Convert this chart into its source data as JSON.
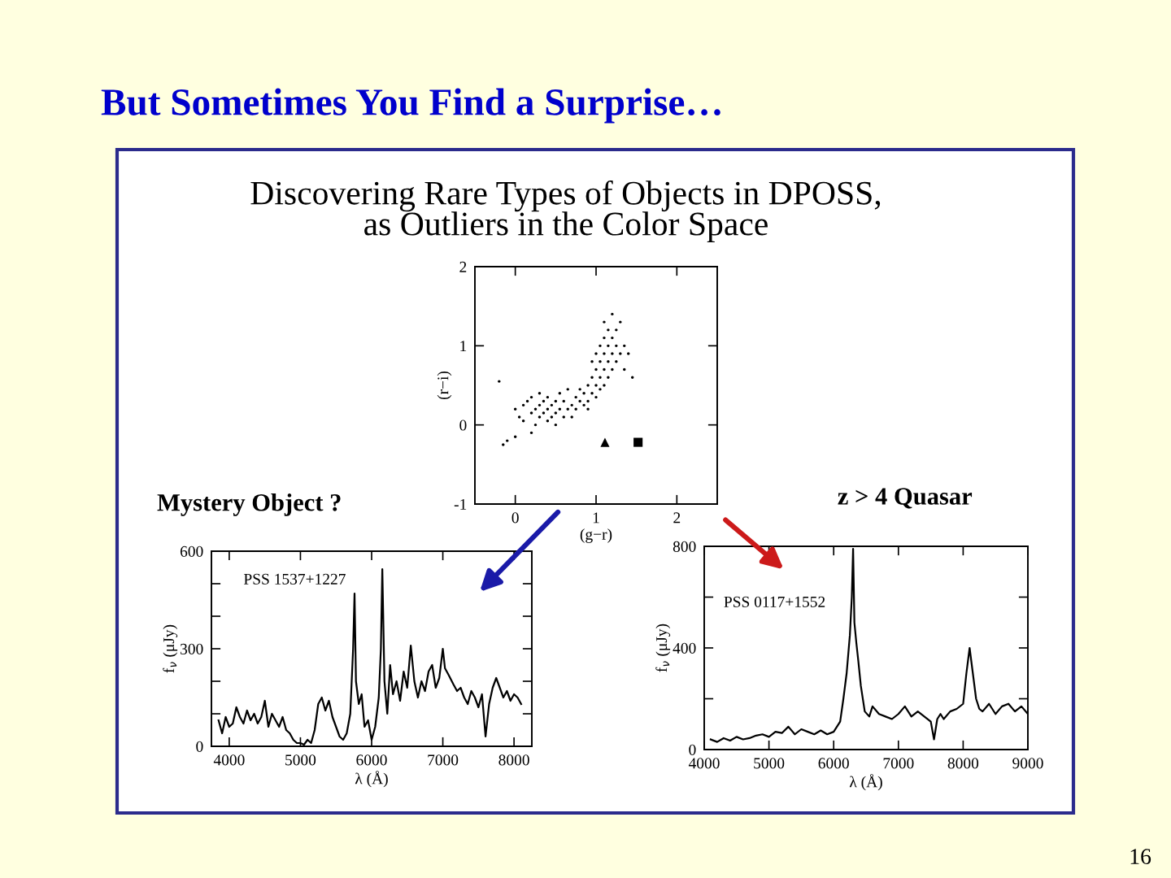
{
  "chart_data": [
    {
      "type": "scatter",
      "title": "Discovering Rare Types of Objects in DPOSS,\nas Outliers in the Color Space",
      "xlabel": "(g−r)",
      "ylabel": "(r−i)",
      "xlim": [
        -0.5,
        2.5
      ],
      "ylim": [
        -1,
        2
      ],
      "xticks": [
        0,
        1,
        2
      ],
      "yticks": [
        -1,
        0,
        1,
        2
      ],
      "grid": false,
      "legend": false,
      "annotations": [
        "But Sometimes You Find a Surprise…",
        "16"
      ],
      "series": [
        {
          "color": "#000000",
          "marker": "circle",
          "x": [
            0.0,
            0.05,
            0.1,
            0.1,
            0.15,
            0.2,
            0.2,
            0.25,
            0.25,
            0.3,
            0.3,
            0.3,
            0.35,
            0.35,
            0.4,
            0.4,
            0.4,
            0.45,
            0.45,
            0.5,
            0.5,
            0.5,
            0.55,
            0.55,
            0.6,
            0.6,
            0.65,
            0.65,
            0.7,
            0.7,
            0.75,
            0.75,
            0.8,
            0.8,
            0.85,
            0.85,
            0.9,
            0.9,
            0.9,
            0.95,
            0.95,
            0.95,
            1.0,
            1.0,
            1.0,
            1.0,
            1.05,
            1.05,
            1.05,
            1.05,
            1.1,
            1.1,
            1.1,
            1.1,
            1.1,
            1.15,
            1.15,
            1.15,
            1.15,
            1.2,
            1.2,
            1.2,
            1.2,
            1.25,
            1.25,
            1.25,
            1.3,
            1.3,
            1.35,
            1.35,
            1.4,
            0.2,
            0.0,
            -0.1,
            -0.15,
            -0.2,
            1.45
          ],
          "values": [
            0.2,
            0.1,
            0.25,
            0.05,
            0.3,
            0.15,
            0.35,
            0.2,
            0.0,
            0.1,
            0.25,
            0.4,
            0.15,
            0.3,
            0.05,
            0.2,
            0.35,
            0.1,
            0.25,
            0.15,
            0.3,
            0.0,
            0.2,
            0.4,
            0.1,
            0.3,
            0.2,
            0.45,
            0.25,
            0.1,
            0.35,
            0.2,
            0.3,
            0.45,
            0.25,
            0.4,
            0.3,
            0.5,
            0.2,
            0.6,
            0.4,
            0.8,
            0.5,
            0.7,
            0.35,
            0.9,
            0.6,
            0.8,
            1.0,
            0.45,
            0.5,
            0.7,
            0.9,
            1.1,
            1.3,
            0.6,
            0.8,
            1.0,
            1.2,
            0.7,
            0.9,
            1.1,
            1.4,
            0.8,
            1.0,
            1.2,
            0.9,
            1.3,
            0.7,
            1.0,
            0.9,
            -0.1,
            -0.15,
            -0.2,
            -0.25,
            0.55,
            0.6
          ]
        },
        {
          "color": "#000000",
          "marker": "triangle",
          "x": [
            1.11
          ],
          "values": [
            -0.22
          ]
        },
        {
          "color": "#000000",
          "marker": "square",
          "x": [
            1.52
          ],
          "values": [
            -0.22
          ]
        }
      ]
    },
    {
      "type": "line",
      "title": "Mystery Object ?",
      "xlabel": "λ (Å)",
      "ylabel": "f$_{ν}$ (μJy)",
      "xlim": [
        3750,
        8250
      ],
      "ylim": [
        0,
        600
      ],
      "xticks": [
        4000,
        5000,
        6000,
        7000,
        8000
      ],
      "yticks": [
        0,
        {
          "value": 100,
          "label": null
        },
        {
          "value": 200,
          "label": null
        },
        300,
        {
          "value": 400,
          "label": null
        },
        {
          "value": 500,
          "label": null
        },
        600
      ],
      "grid": false,
      "legend": false,
      "annotations": [
        "PSS 1537+1227"
      ],
      "series": [
        {
          "color": "#000000",
          "x": [
            3850,
            3900,
            3950,
            4000,
            4050,
            4100,
            4150,
            4200,
            4250,
            4300,
            4350,
            4400,
            4450,
            4500,
            4550,
            4600,
            4650,
            4700,
            4750,
            4800,
            4850,
            4900,
            4950,
            5000,
            5050,
            5100,
            5150,
            5200,
            5250,
            5300,
            5350,
            5400,
            5450,
            5500,
            5550,
            5600,
            5650,
            5700,
            5740,
            5760,
            5780,
            5820,
            5860,
            5900,
            5950,
            6000,
            6050,
            6100,
            6130,
            6150,
            6180,
            6220,
            6260,
            6300,
            6350,
            6400,
            6450,
            6500,
            6550,
            6600,
            6650,
            6700,
            6750,
            6800,
            6850,
            6900,
            6950,
            7000,
            7030,
            7080,
            7150,
            7200,
            7250,
            7300,
            7350,
            7400,
            7450,
            7500,
            7550,
            7600,
            7650,
            7700,
            7750,
            7800,
            7850,
            7900,
            7950,
            8000,
            8050,
            8100
          ],
          "values": [
            80,
            40,
            90,
            60,
            70,
            120,
            90,
            70,
            110,
            80,
            100,
            70,
            90,
            140,
            60,
            100,
            80,
            60,
            90,
            50,
            40,
            20,
            10,
            10,
            5,
            20,
            10,
            50,
            130,
            150,
            110,
            140,
            90,
            60,
            30,
            20,
            40,
            100,
            300,
            470,
            200,
            130,
            160,
            60,
            80,
            20,
            60,
            150,
            300,
            545,
            200,
            100,
            250,
            160,
            200,
            140,
            230,
            180,
            310,
            200,
            150,
            200,
            170,
            230,
            250,
            180,
            210,
            300,
            240,
            220,
            190,
            170,
            180,
            150,
            130,
            170,
            150,
            120,
            160,
            30,
            130,
            180,
            210,
            180,
            150,
            170,
            140,
            160,
            150,
            130
          ]
        }
      ]
    },
    {
      "type": "line",
      "title": "z > 4 Quasar",
      "xlabel": "λ (Å)",
      "ylabel": "f$_{ν}$ (μJy)",
      "xlim": [
        4000,
        9000
      ],
      "ylim": [
        0,
        800
      ],
      "xticks": [
        4000,
        5000,
        6000,
        7000,
        8000,
        9000
      ],
      "yticks": [
        0,
        {
          "value": 200,
          "label": null
        },
        400,
        {
          "value": 600,
          "label": null
        },
        800
      ],
      "grid": false,
      "legend": false,
      "annotations": [
        "PSS 0117+1552"
      ],
      "series": [
        {
          "color": "#000000",
          "x": [
            4100,
            4200,
            4300,
            4400,
            4500,
            4600,
            4700,
            4800,
            4900,
            5000,
            5100,
            5200,
            5300,
            5400,
            5500,
            5600,
            5700,
            5800,
            5900,
            6000,
            6100,
            6150,
            6200,
            6250,
            6280,
            6300,
            6320,
            6350,
            6380,
            6420,
            6480,
            6550,
            6600,
            6700,
            6800,
            6900,
            7000,
            7100,
            7200,
            7300,
            7400,
            7500,
            7550,
            7600,
            7650,
            7700,
            7800,
            7900,
            8000,
            8050,
            8100,
            8150,
            8200,
            8250,
            8300,
            8400,
            8500,
            8600,
            8700,
            8800,
            8900,
            9000
          ],
          "values": [
            40,
            30,
            45,
            35,
            50,
            40,
            45,
            55,
            60,
            50,
            70,
            65,
            90,
            60,
            80,
            70,
            60,
            75,
            60,
            70,
            110,
            200,
            300,
            450,
            600,
            790,
            500,
            420,
            350,
            250,
            150,
            130,
            170,
            140,
            130,
            120,
            140,
            170,
            130,
            150,
            130,
            110,
            40,
            120,
            140,
            120,
            150,
            160,
            180,
            300,
            400,
            300,
            200,
            160,
            150,
            180,
            140,
            170,
            180,
            150,
            170,
            140
          ]
        }
      ]
    }
  ]
}
